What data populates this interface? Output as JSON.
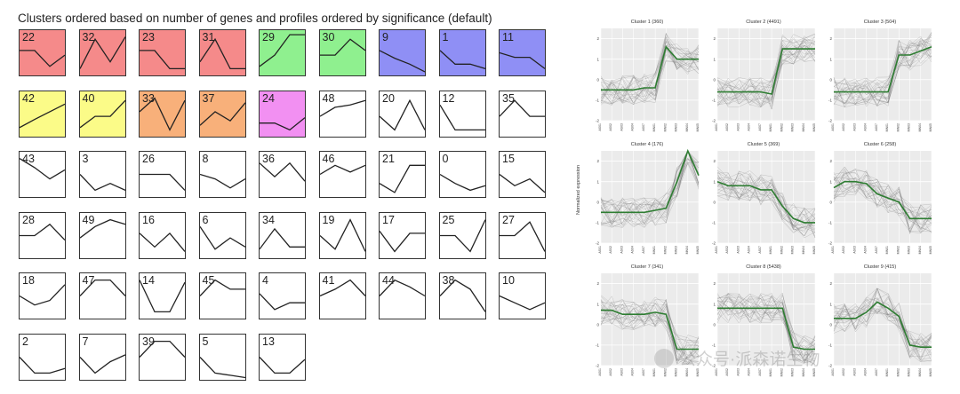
{
  "chart_data": [
    {
      "type": "profile_grid",
      "title": "Clusters ordered based on number of genes and profiles ordered by significance (default)",
      "profiles": [
        {
          "id": "22",
          "color": "#f58a8a",
          "values": [
            0.55,
            0.55,
            0.2,
            0.45
          ]
        },
        {
          "id": "32",
          "color": "#f58a8a",
          "values": [
            0.15,
            0.8,
            0.3,
            0.85
          ]
        },
        {
          "id": "23",
          "color": "#f58a8a",
          "values": [
            0.55,
            0.55,
            0.15,
            0.15
          ]
        },
        {
          "id": "31",
          "color": "#f58a8a",
          "values": [
            0.3,
            0.8,
            0.15,
            0.15
          ]
        },
        {
          "id": "29",
          "color": "#8ff08f",
          "values": [
            0.2,
            0.45,
            0.9,
            0.9
          ]
        },
        {
          "id": "30",
          "color": "#8ff08f",
          "values": [
            0.45,
            0.45,
            0.8,
            0.55
          ]
        },
        {
          "id": "9",
          "color": "#8f8ff5",
          "values": [
            0.55,
            0.38,
            0.25,
            0.08
          ]
        },
        {
          "id": "1",
          "color": "#8f8ff5",
          "values": [
            0.55,
            0.25,
            0.25,
            0.15
          ]
        },
        {
          "id": "11",
          "color": "#8f8ff5",
          "values": [
            0.5,
            0.4,
            0.4,
            0.15
          ]
        },
        {
          "id": "42",
          "color": "#fbfb88",
          "values": [
            0.2,
            0.38,
            0.55,
            0.72
          ]
        },
        {
          "id": "40",
          "color": "#fbfb88",
          "values": [
            0.2,
            0.45,
            0.45,
            0.8
          ]
        },
        {
          "id": "33",
          "color": "#f8b07a",
          "values": [
            0.55,
            0.85,
            0.15,
            0.8
          ]
        },
        {
          "id": "37",
          "color": "#f8b07a",
          "values": [
            0.25,
            0.55,
            0.35,
            0.75
          ]
        },
        {
          "id": "24",
          "color": "#f290f2",
          "values": [
            0.3,
            0.3,
            0.15,
            0.42
          ]
        },
        {
          "id": "48",
          "color": "#ffffff",
          "values": [
            0.45,
            0.65,
            0.7,
            0.8
          ]
        },
        {
          "id": "20",
          "color": "#ffffff",
          "values": [
            0.45,
            0.15,
            0.8,
            0.15
          ]
        },
        {
          "id": "12",
          "color": "#ffffff",
          "values": [
            0.7,
            0.15,
            0.15,
            0.15
          ]
        },
        {
          "id": "35",
          "color": "#ffffff",
          "values": [
            0.45,
            0.8,
            0.45,
            0.45
          ]
        },
        {
          "id": "43",
          "color": "#ffffff",
          "values": [
            0.85,
            0.65,
            0.4,
            0.6
          ]
        },
        {
          "id": "3",
          "color": "#ffffff",
          "values": [
            0.5,
            0.15,
            0.3,
            0.15
          ]
        },
        {
          "id": "26",
          "color": "#ffffff",
          "values": [
            0.5,
            0.5,
            0.5,
            0.15
          ]
        },
        {
          "id": "8",
          "color": "#ffffff",
          "values": [
            0.5,
            0.4,
            0.2,
            0.4
          ]
        },
        {
          "id": "36",
          "color": "#ffffff",
          "values": [
            0.75,
            0.45,
            0.75,
            0.35
          ]
        },
        {
          "id": "46",
          "color": "#ffffff",
          "values": [
            0.5,
            0.7,
            0.55,
            0.7
          ]
        },
        {
          "id": "21",
          "color": "#ffffff",
          "values": [
            0.3,
            0.1,
            0.7,
            0.7
          ]
        },
        {
          "id": "0",
          "color": "#ffffff",
          "values": [
            0.5,
            0.3,
            0.15,
            0.25
          ]
        },
        {
          "id": "15",
          "color": "#ffffff",
          "values": [
            0.5,
            0.25,
            0.4,
            0.1
          ]
        },
        {
          "id": "28",
          "color": "#ffffff",
          "values": [
            0.5,
            0.5,
            0.75,
            0.4
          ]
        },
        {
          "id": "49",
          "color": "#ffffff",
          "values": [
            0.45,
            0.7,
            0.85,
            0.75
          ]
        },
        {
          "id": "16",
          "color": "#ffffff",
          "values": [
            0.55,
            0.25,
            0.55,
            0.15
          ]
        },
        {
          "id": "6",
          "color": "#ffffff",
          "values": [
            0.7,
            0.2,
            0.45,
            0.25
          ]
        },
        {
          "id": "34",
          "color": "#ffffff",
          "values": [
            0.2,
            0.65,
            0.25,
            0.25
          ]
        },
        {
          "id": "19",
          "color": "#ffffff",
          "values": [
            0.5,
            0.2,
            0.85,
            0.15
          ]
        },
        {
          "id": "17",
          "color": "#ffffff",
          "values": [
            0.6,
            0.15,
            0.55,
            0.55
          ]
        },
        {
          "id": "25",
          "color": "#ffffff",
          "values": [
            0.5,
            0.5,
            0.15,
            0.85
          ]
        },
        {
          "id": "27",
          "color": "#ffffff",
          "values": [
            0.5,
            0.5,
            0.8,
            0.15
          ]
        },
        {
          "id": "18",
          "color": "#ffffff",
          "values": [
            0.5,
            0.3,
            0.4,
            0.75
          ]
        },
        {
          "id": "47",
          "color": "#ffffff",
          "values": [
            0.5,
            0.85,
            0.85,
            0.5
          ]
        },
        {
          "id": "14",
          "color": "#ffffff",
          "values": [
            0.85,
            0.15,
            0.15,
            0.8
          ]
        },
        {
          "id": "45",
          "color": "#ffffff",
          "values": [
            0.5,
            0.85,
            0.65,
            0.65
          ]
        },
        {
          "id": "4",
          "color": "#ffffff",
          "values": [
            0.55,
            0.2,
            0.35,
            0.35
          ]
        },
        {
          "id": "41",
          "color": "#ffffff",
          "values": [
            0.5,
            0.65,
            0.85,
            0.5
          ]
        },
        {
          "id": "44",
          "color": "#ffffff",
          "values": [
            0.5,
            0.85,
            0.7,
            0.5
          ]
        },
        {
          "id": "38",
          "color": "#ffffff",
          "values": [
            0.5,
            0.85,
            0.65,
            0.15
          ]
        },
        {
          "id": "10",
          "color": "#ffffff",
          "values": [
            0.5,
            0.35,
            0.2,
            0.35
          ]
        },
        {
          "id": "2",
          "color": "#ffffff",
          "values": [
            0.5,
            0.15,
            0.15,
            0.25
          ]
        },
        {
          "id": "7",
          "color": "#ffffff",
          "values": [
            0.5,
            0.15,
            0.4,
            0.55
          ]
        },
        {
          "id": "39",
          "color": "#ffffff",
          "values": [
            0.5,
            0.85,
            0.85,
            0.5
          ]
        },
        {
          "id": "5",
          "color": "#ffffff",
          "values": [
            0.5,
            0.15,
            0.1,
            0.05
          ]
        },
        {
          "id": "13",
          "color": "#ffffff",
          "values": [
            0.5,
            0.15,
            0.15,
            0.45
          ]
        }
      ]
    },
    {
      "type": "line",
      "ylabel": "Normalized expression",
      "x_labels": [
        "AS01",
        "AS02",
        "AS03",
        "AS04",
        "AS07",
        "MN01",
        "MN02",
        "MN03",
        "MN04",
        "MN05"
      ],
      "ylim": [
        -2,
        2.5
      ],
      "yticks": [
        -2,
        -1,
        0,
        1,
        2
      ],
      "line_color": "#2e7d32",
      "band_color": "#707070",
      "clusters": [
        {
          "title": "Cluster 1 (360)",
          "mean": [
            -0.5,
            -0.5,
            -0.5,
            -0.5,
            -0.4,
            -0.4,
            1.6,
            1.0,
            1.0,
            1.0
          ]
        },
        {
          "title": "Cluster 2 (4491)",
          "mean": [
            -0.6,
            -0.6,
            -0.6,
            -0.6,
            -0.6,
            -0.7,
            1.5,
            1.5,
            1.5,
            1.5
          ]
        },
        {
          "title": "Cluster 3 (504)",
          "mean": [
            -0.6,
            -0.6,
            -0.6,
            -0.6,
            -0.6,
            -0.6,
            1.2,
            1.2,
            1.4,
            1.6
          ]
        },
        {
          "title": "Cluster 4 (176)",
          "mean": [
            -0.5,
            -0.5,
            -0.5,
            -0.5,
            -0.5,
            -0.4,
            -0.3,
            1.0,
            2.5,
            1.3
          ]
        },
        {
          "title": "Cluster 5 (369)",
          "mean": [
            1.0,
            0.8,
            0.8,
            0.8,
            0.6,
            0.6,
            -0.2,
            -0.8,
            -1.0,
            -1.0
          ]
        },
        {
          "title": "Cluster 6 (258)",
          "mean": [
            0.7,
            1.0,
            1.0,
            0.9,
            0.4,
            0.2,
            0.0,
            -0.8,
            -0.8,
            -0.8
          ]
        },
        {
          "title": "Cluster 7 (341)",
          "mean": [
            0.7,
            0.7,
            0.5,
            0.5,
            0.5,
            0.6,
            0.5,
            -1.2,
            -1.2,
            -1.2
          ]
        },
        {
          "title": "Cluster 8 (5438)",
          "mean": [
            0.8,
            0.8,
            0.8,
            0.8,
            0.8,
            0.8,
            0.8,
            -1.1,
            -1.2,
            -1.2
          ]
        },
        {
          "title": "Cluster 9 (415)",
          "mean": [
            0.3,
            0.3,
            0.3,
            0.6,
            1.1,
            0.8,
            0.4,
            -1.0,
            -1.1,
            -1.1
          ]
        }
      ]
    }
  ],
  "watermark": "公众号·派森诺生物"
}
